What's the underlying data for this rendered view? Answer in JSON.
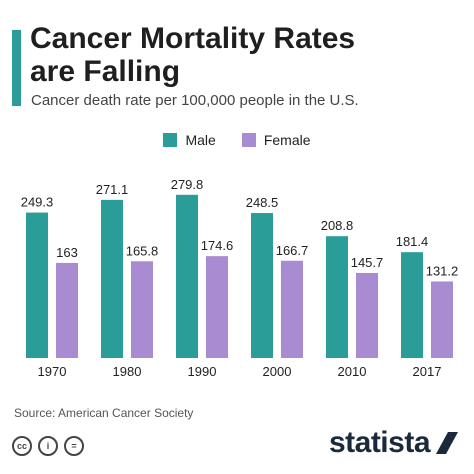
{
  "header": {
    "title_line1": "Cancer Mortality Rates",
    "title_line2": "are Falling",
    "subtitle": "Cancer death rate per 100,000 people in the U.S."
  },
  "colors": {
    "male": "#2a9d98",
    "female": "#a88bd0",
    "accent": "#2a9d98"
  },
  "chart_data": {
    "type": "bar",
    "title": "Cancer Mortality Rates are Falling",
    "subtitle": "Cancer death rate per 100,000 people in the U.S.",
    "categories": [
      "1970",
      "1980",
      "1990",
      "2000",
      "2010",
      "2017"
    ],
    "series": [
      {
        "name": "Male",
        "values": [
          249.3,
          271.1,
          279.8,
          248.5,
          208.8,
          181.4
        ]
      },
      {
        "name": "Female",
        "values": [
          163,
          165.8,
          174.6,
          166.7,
          145.7,
          131.2
        ]
      }
    ],
    "value_labels": {
      "Male": [
        "249.3",
        "271.1",
        "279.8",
        "248.5",
        "208.8",
        "181.4"
      ],
      "Female": [
        "163",
        "165.8",
        "174.6",
        "166.7",
        "145.7",
        "131.2"
      ]
    },
    "ylim": [
      0,
      300
    ],
    "grid": false,
    "legend_position": "top-center"
  },
  "footer": {
    "source": "Source: American Cancer Society",
    "license_icons": [
      "cc",
      "i",
      "="
    ],
    "brand": "statista"
  }
}
